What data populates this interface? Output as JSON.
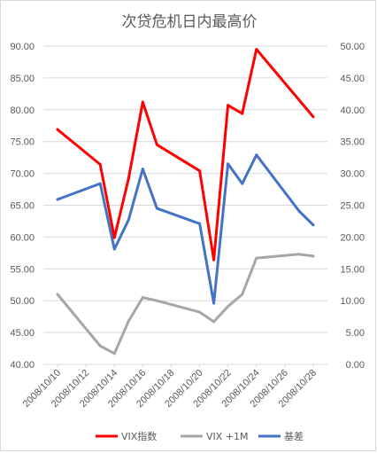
{
  "chart_data": {
    "type": "line",
    "title": "次贷危机日内最高价",
    "x": [
      "2008/10/10",
      "2008/10/13",
      "2008/10/14",
      "2008/10/15",
      "2008/10/16",
      "2008/10/17",
      "2008/10/20",
      "2008/10/21",
      "2008/10/22",
      "2008/10/23",
      "2008/10/24",
      "2008/10/27",
      "2008/10/28"
    ],
    "x_tick_labels": [
      "2008/10/10",
      "2008/10/12",
      "2008/10/14",
      "2008/10/16",
      "2008/10/18",
      "2008/10/20",
      "2008/10/22",
      "2008/10/24",
      "2008/10/26",
      "2008/10/28"
    ],
    "x_range": [
      "2008/10/09",
      "2008/10/29"
    ],
    "y_left_ticks": [
      "40.00",
      "45.00",
      "50.00",
      "55.00",
      "60.00",
      "65.00",
      "70.00",
      "75.00",
      "80.00",
      "85.00",
      "90.00"
    ],
    "y_left_range": [
      40,
      90
    ],
    "y_right_ticks": [
      "0.00",
      "5.00",
      "10.00",
      "15.00",
      "20.00",
      "25.00",
      "30.00",
      "35.00",
      "40.00",
      "45.00",
      "50.00"
    ],
    "y_right_range": [
      0,
      50
    ],
    "series": [
      {
        "name": "VIX指数",
        "axis": "left",
        "color": "#ff0000",
        "x": [
          "2008/10/10",
          "2008/10/13",
          "2008/10/14",
          "2008/10/15",
          "2008/10/16",
          "2008/10/17",
          "2008/10/20",
          "2008/10/21",
          "2008/10/22",
          "2008/10/23",
          "2008/10/24",
          "2008/10/28"
        ],
        "values": [
          76.9,
          71.4,
          59.9,
          69.2,
          81.2,
          74.5,
          70.4,
          56.4,
          80.7,
          79.4,
          89.5,
          78.9
        ]
      },
      {
        "name": "VIX +1M",
        "axis": "left",
        "color": "#a6a6a6",
        "x": [
          "2008/10/10",
          "2008/10/13",
          "2008/10/14",
          "2008/10/15",
          "2008/10/16",
          "2008/10/17",
          "2008/10/20",
          "2008/10/21",
          "2008/10/22",
          "2008/10/23",
          "2008/10/24",
          "2008/10/27",
          "2008/10/28"
        ],
        "values": [
          51.0,
          42.9,
          41.7,
          46.8,
          50.5,
          50.0,
          48.2,
          46.7,
          49.1,
          51.0,
          56.7,
          57.3,
          57.0
        ]
      },
      {
        "name": "基差",
        "axis": "right",
        "color": "#4472c4",
        "x": [
          "2008/10/10",
          "2008/10/13",
          "2008/10/14",
          "2008/10/15",
          "2008/10/16",
          "2008/10/17",
          "2008/10/20",
          "2008/10/21",
          "2008/10/22",
          "2008/10/23",
          "2008/10/24",
          "2008/10/27",
          "2008/10/28"
        ],
        "values": [
          25.9,
          28.4,
          18.1,
          22.7,
          30.7,
          24.5,
          22.1,
          9.6,
          31.5,
          28.4,
          32.9,
          24.1,
          21.9
        ]
      }
    ],
    "legend_position": "bottom",
    "grid": "horizontal"
  }
}
